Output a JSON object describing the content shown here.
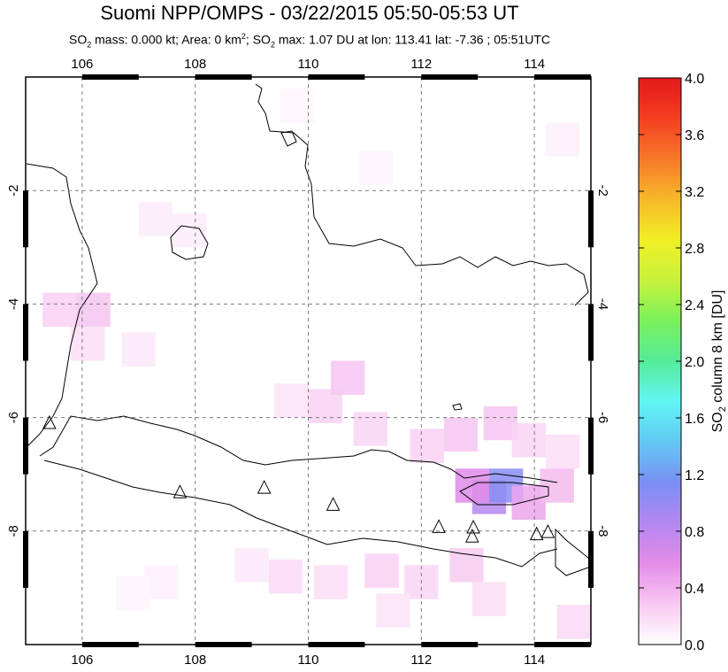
{
  "title": "Suomi NPP/OMPS - 03/22/2015 05:50-05:53 UT",
  "subtitle": {
    "so2_mass": "0.000",
    "area": "0",
    "so2_max": "1.07",
    "lon": "113.41",
    "lat": "-7.36",
    "time": "05:51UTC"
  },
  "map": {
    "lon_ticks": [
      "106",
      "108",
      "110",
      "112",
      "114"
    ],
    "lat_ticks": [
      "-2",
      "-4",
      "-6",
      "-8"
    ],
    "lon_range": [
      105.0,
      115.0
    ],
    "lat_range": [
      -10.0,
      0.0
    ],
    "grid": true,
    "volcano_marker": "triangle-icon",
    "volcanoes": [
      {
        "lon": 105.42,
        "lat": -6.1
      },
      {
        "lon": 107.73,
        "lat": -7.32
      },
      {
        "lon": 109.22,
        "lat": -7.24
      },
      {
        "lon": 110.44,
        "lat": -7.54
      },
      {
        "lon": 112.31,
        "lat": -7.93
      },
      {
        "lon": 112.92,
        "lat": -7.94
      },
      {
        "lon": 112.9,
        "lat": -8.1
      },
      {
        "lon": 114.04,
        "lat": -8.06
      },
      {
        "lon": 114.24,
        "lat": -8.02
      }
    ],
    "so2_cells": [
      {
        "lon": 107.3,
        "lat": -2.5,
        "v": 0.1
      },
      {
        "lon": 107.9,
        "lat": -2.7,
        "v": 0.1
      },
      {
        "lon": 105.6,
        "lat": -4.1,
        "v": 0.25
      },
      {
        "lon": 106.2,
        "lat": -4.1,
        "v": 0.3
      },
      {
        "lon": 106.1,
        "lat": -4.7,
        "v": 0.18
      },
      {
        "lon": 107.0,
        "lat": -4.8,
        "v": 0.12
      },
      {
        "lon": 109.7,
        "lat": -5.7,
        "v": 0.15
      },
      {
        "lon": 110.3,
        "lat": -5.8,
        "v": 0.25
      },
      {
        "lon": 110.7,
        "lat": -5.3,
        "v": 0.3
      },
      {
        "lon": 111.1,
        "lat": -6.2,
        "v": 0.22
      },
      {
        "lon": 112.1,
        "lat": -6.5,
        "v": 0.25
      },
      {
        "lon": 112.7,
        "lat": -6.3,
        "v": 0.3
      },
      {
        "lon": 113.4,
        "lat": -6.1,
        "v": 0.3
      },
      {
        "lon": 113.9,
        "lat": -6.4,
        "v": 0.22
      },
      {
        "lon": 114.5,
        "lat": -6.6,
        "v": 0.18
      },
      {
        "lon": 113.2,
        "lat": -7.4,
        "v": 0.85
      },
      {
        "lon": 113.5,
        "lat": -7.2,
        "v": 1.07
      },
      {
        "lon": 112.9,
        "lat": -7.2,
        "v": 0.6
      },
      {
        "lon": 113.9,
        "lat": -7.5,
        "v": 0.45
      },
      {
        "lon": 114.4,
        "lat": -7.2,
        "v": 0.35
      },
      {
        "lon": 109.0,
        "lat": -8.6,
        "v": 0.12
      },
      {
        "lon": 109.6,
        "lat": -8.8,
        "v": 0.2
      },
      {
        "lon": 110.4,
        "lat": -8.9,
        "v": 0.18
      },
      {
        "lon": 111.3,
        "lat": -8.7,
        "v": 0.25
      },
      {
        "lon": 112.0,
        "lat": -8.9,
        "v": 0.22
      },
      {
        "lon": 112.8,
        "lat": -8.6,
        "v": 0.28
      },
      {
        "lon": 113.2,
        "lat": -9.2,
        "v": 0.18
      },
      {
        "lon": 111.5,
        "lat": -9.4,
        "v": 0.15
      },
      {
        "lon": 107.4,
        "lat": -8.9,
        "v": 0.08
      },
      {
        "lon": 106.9,
        "lat": -9.1,
        "v": 0.06
      },
      {
        "lon": 114.7,
        "lat": -9.6,
        "v": 0.2
      },
      {
        "lon": 114.5,
        "lat": -1.1,
        "v": 0.08
      },
      {
        "lon": 109.8,
        "lat": -0.5,
        "v": 0.05
      },
      {
        "lon": 111.2,
        "lat": -1.6,
        "v": 0.06
      }
    ]
  },
  "colorbar": {
    "label": "SO2 column 8 km [DU]",
    "label_sub": "2",
    "ticks": [
      "4.0",
      "3.6",
      "3.2",
      "2.8",
      "2.4",
      "2.0",
      "1.6",
      "1.2",
      "0.8",
      "0.4",
      "0.0"
    ],
    "range": [
      0.0,
      4.0
    ],
    "colors": [
      "#ffffff",
      "#f7c9f1",
      "#e48ce8",
      "#b487f0",
      "#7a8ff4",
      "#63c8f4",
      "#61f5f4",
      "#55ec9a",
      "#7bf15b",
      "#c7f23c",
      "#f2ef25",
      "#f7b82a",
      "#f7782a",
      "#f43f20",
      "#e3181c"
    ]
  }
}
